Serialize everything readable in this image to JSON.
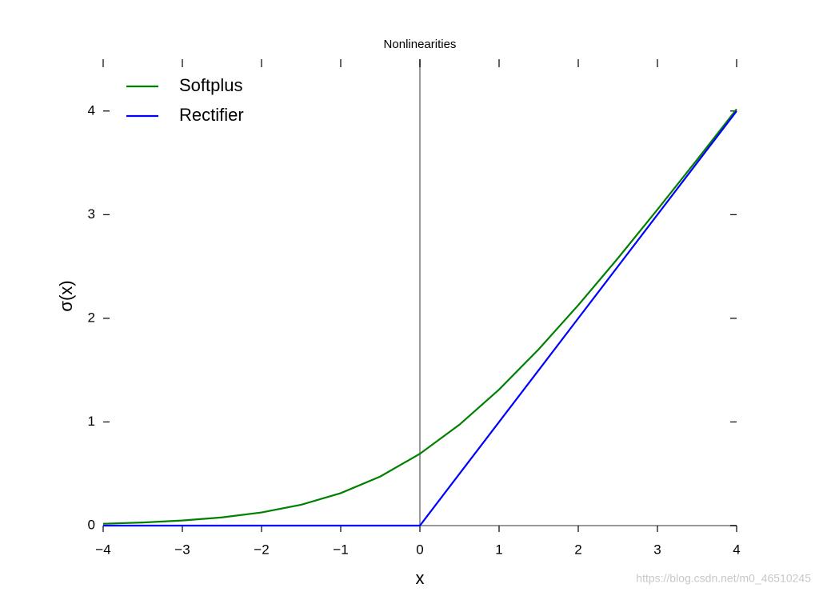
{
  "chart_data": {
    "type": "line",
    "title": "Nonlinearities",
    "x_label": "x",
    "y_label": "σ(x)",
    "watermark": "https://blog.csdn.net/m0_46510245",
    "x": [
      -4,
      -3.5,
      -3,
      -2.5,
      -2,
      -1.5,
      -1,
      -0.5,
      0,
      0.5,
      1,
      1.5,
      2,
      2.5,
      3,
      3.5,
      4
    ],
    "series": [
      {
        "name": "Softplus",
        "color": "#008000",
        "values": [
          0.018,
          0.03,
          0.049,
          0.079,
          0.127,
          0.201,
          0.313,
          0.474,
          0.693,
          0.974,
          1.313,
          1.701,
          2.127,
          2.579,
          3.049,
          3.53,
          4.018
        ]
      },
      {
        "name": "Rectifier",
        "color": "#0000ff",
        "values": [
          0,
          0,
          0,
          0,
          0,
          0,
          0,
          0,
          0,
          0.5,
          1,
          1.5,
          2,
          2.5,
          3,
          3.5,
          4
        ]
      }
    ],
    "xlim": [
      -4,
      4
    ],
    "ylim": [
      0,
      4.5
    ],
    "xticks": [
      {
        "value": -4,
        "label": "−4"
      },
      {
        "value": -3,
        "label": "−3"
      },
      {
        "value": -2,
        "label": "−2"
      },
      {
        "value": -1,
        "label": "−1"
      },
      0,
      1,
      2,
      3,
      4
    ],
    "yticks": [
      0,
      1,
      2,
      3,
      4
    ],
    "legend": "upper left",
    "grid": false
  }
}
